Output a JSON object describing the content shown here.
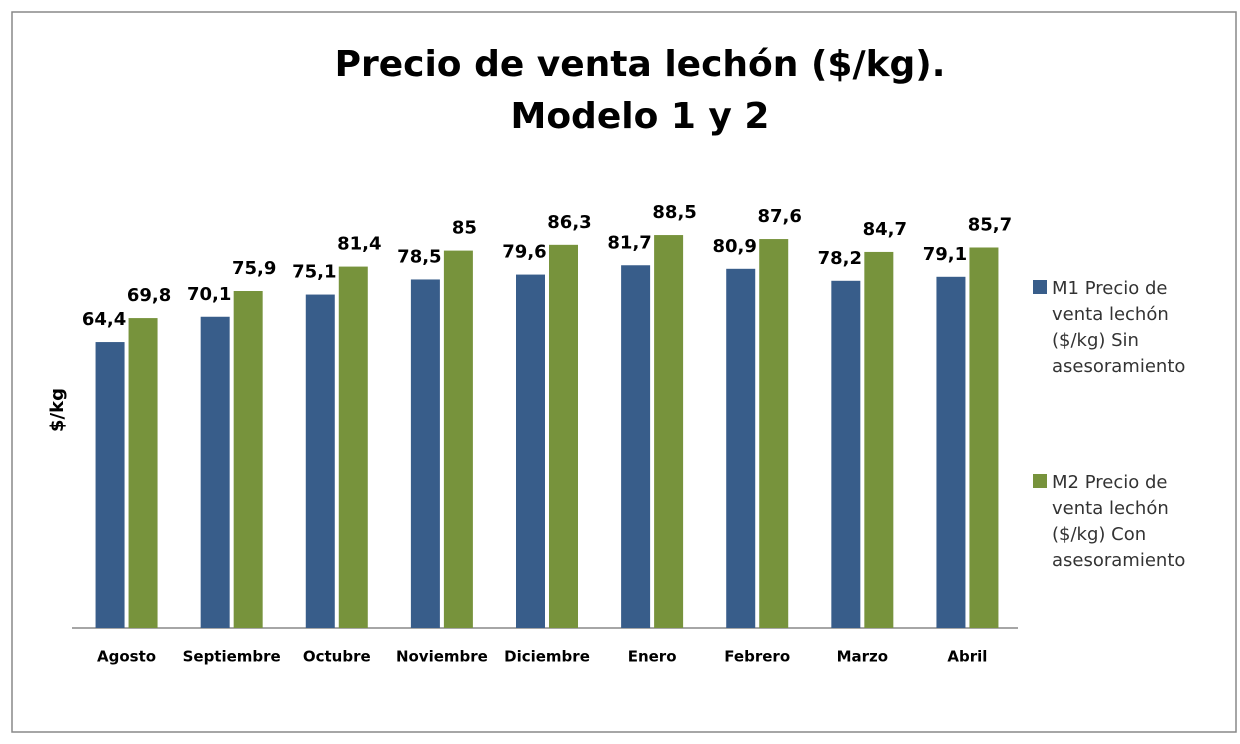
{
  "chart_data": {
    "type": "bar",
    "title": [
      "Precio de venta lechón ($/kg).",
      "Modelo 1 y 2"
    ],
    "y_label": "$/kg",
    "categories": [
      "Agosto",
      "Septiembre",
      "Octubre",
      "Noviembre",
      "Diciembre",
      "Enero",
      "Febrero",
      "Marzo",
      "Abril"
    ],
    "series": [
      {
        "name": "M1 Precio de venta lechón ($/kg) Sin asesoramiento",
        "color": "#385d8a",
        "values": [
          64.4,
          70.1,
          75.1,
          78.5,
          79.6,
          81.7,
          80.9,
          78.2,
          79.1
        ],
        "value_labels": [
          "64,4",
          "70,1",
          "75,1",
          "78,5",
          "79,6",
          "81,7",
          "80,9",
          "78,2",
          "79,1"
        ]
      },
      {
        "name": "M2 Precio de venta lechón ($/kg) Con asesoramiento",
        "color": "#77933c",
        "values": [
          69.8,
          75.9,
          81.4,
          85,
          86.3,
          88.5,
          87.6,
          84.7,
          85.7
        ],
        "value_labels": [
          "69,8",
          "75,9",
          "81,4",
          "85",
          "86,3",
          "88,5",
          "87,6",
          "84,7",
          "85,7"
        ]
      }
    ],
    "ylim": [
      0,
      100
    ],
    "legend": "right"
  }
}
